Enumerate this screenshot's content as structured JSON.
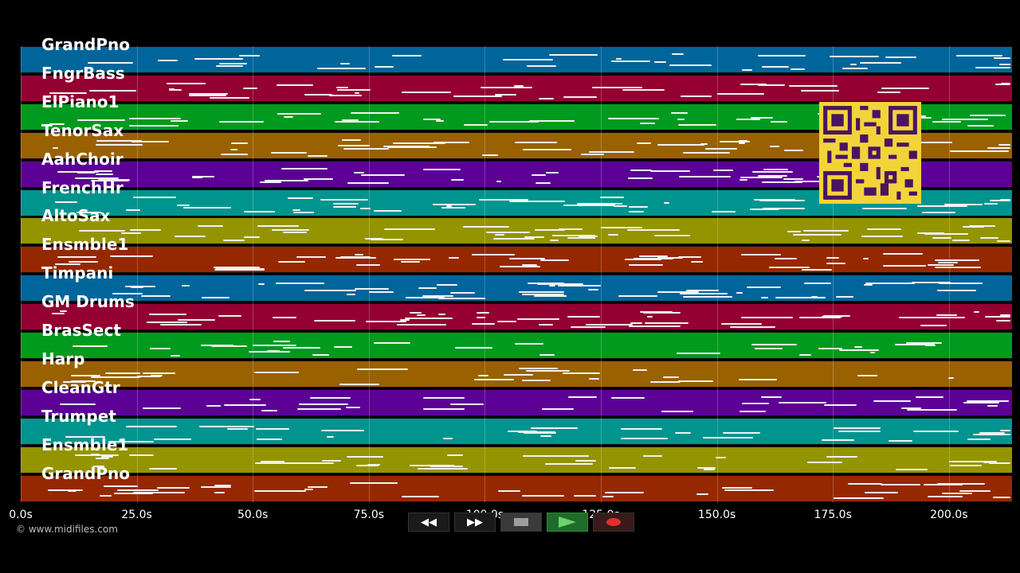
{
  "tracks": [
    {
      "name": "GrandPno",
      "color": "#00659a"
    },
    {
      "name": "FngrBass",
      "color": "#940032"
    },
    {
      "name": "ElPiano1",
      "color": "#009a1e"
    },
    {
      "name": "TenorSax",
      "color": "#9a6100"
    },
    {
      "name": "AahChoir",
      "color": "#5c0096"
    },
    {
      "name": "FrenchHr",
      "color": "#00948f"
    },
    {
      "name": "AltoSax",
      "color": "#949400"
    },
    {
      "name": "Ensmble1",
      "color": "#962800"
    },
    {
      "name": "Timpani",
      "color": "#00659a"
    },
    {
      "name": "GM Drums",
      "color": "#940032"
    },
    {
      "name": "BrasSect",
      "color": "#009a1e"
    },
    {
      "name": "Harp",
      "color": "#9a6100"
    },
    {
      "name": "CleanGtr",
      "color": "#5c0096"
    },
    {
      "name": "Trumpet",
      "color": "#00948f"
    },
    {
      "name": "Ensmble1",
      "color": "#949400"
    },
    {
      "name": "GrandPno",
      "color": "#962800"
    }
  ],
  "timeline": {
    "ticks": [
      "0.0s",
      "25.0s",
      "50.0s",
      "75.0s",
      "100.0s",
      "125.0s",
      "150.0s",
      "175.0s",
      "200.0s"
    ]
  },
  "footer": {
    "copyright": "© www.midifiles.com"
  },
  "controls": {
    "rewind_label": "◀◀",
    "forward_label": "▶▶"
  },
  "qr_code": {
    "color": "#f2d43a",
    "module_color": "#4b1461"
  }
}
